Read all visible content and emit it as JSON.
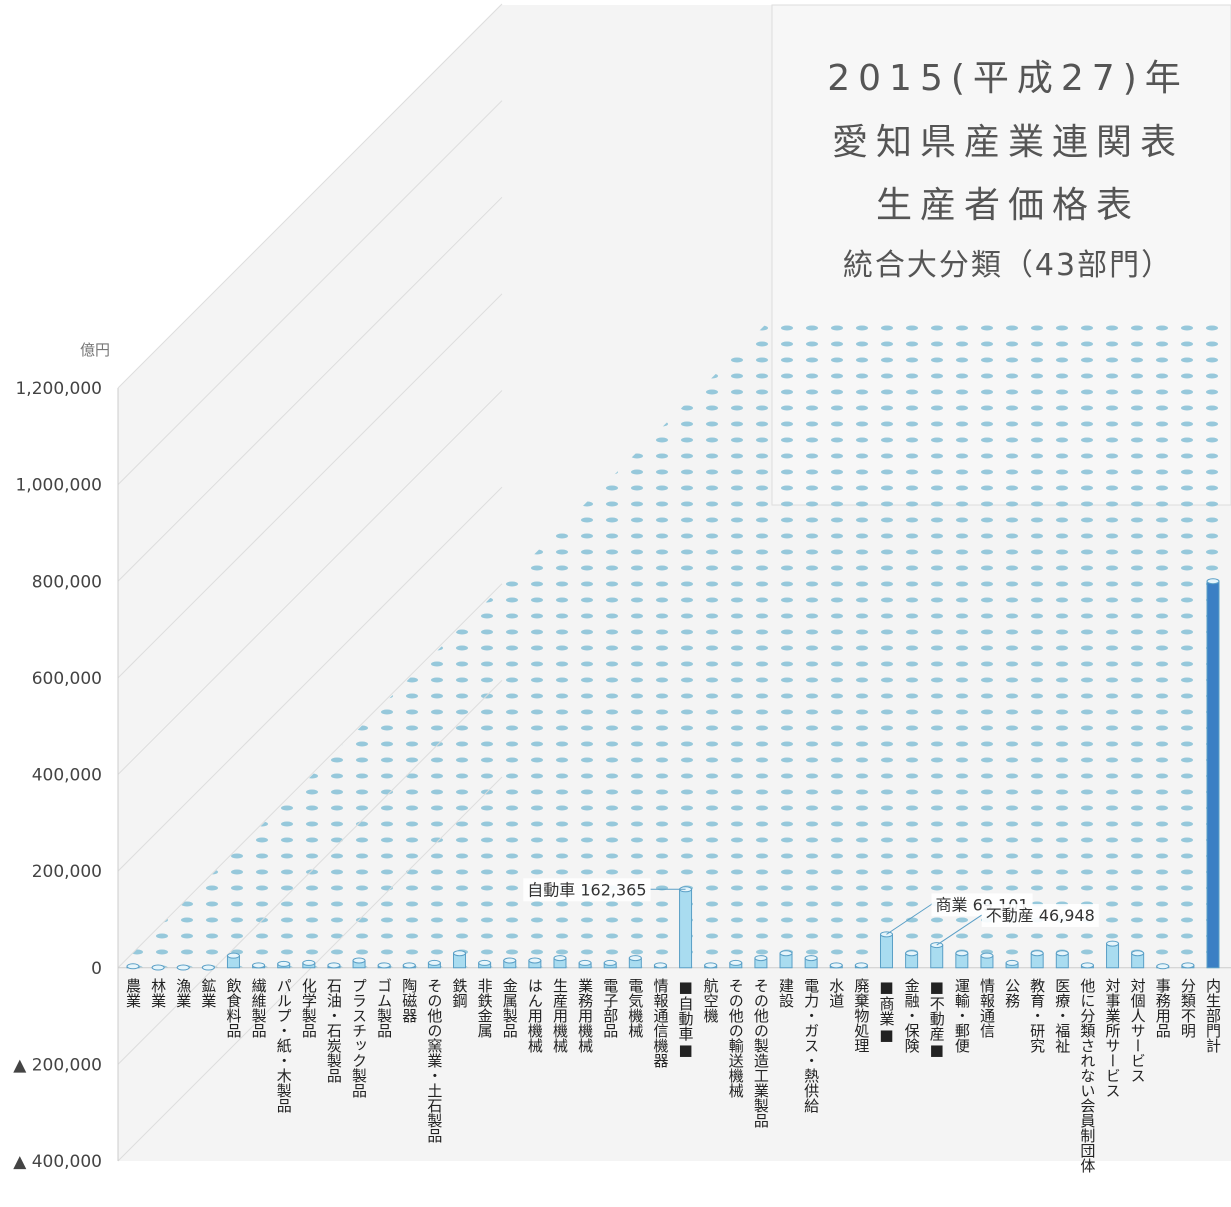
{
  "chart_data": {
    "type": "bar3d",
    "title_lines": [
      "2015(平成27)年",
      "愛知県産業連関表",
      "生産者価格表",
      "統合大分類（43部門）"
    ],
    "y_unit": "億円",
    "ylim": [
      -400000,
      1200000
    ],
    "yticks": [
      {
        "value": -400000,
        "label": "▲ 400,000"
      },
      {
        "value": -200000,
        "label": "▲ 200,000"
      },
      0,
      {
        "value": 200000,
        "label": "200,000"
      },
      {
        "value": 400000,
        "label": "400,000"
      },
      {
        "value": 600000,
        "label": "600,000"
      },
      {
        "value": 800000,
        "label": "800,000"
      },
      {
        "value": 1000000,
        "label": "1,000,000"
      },
      {
        "value": 1200000,
        "label": "1,200,000"
      }
    ],
    "categories": [
      "農業",
      "林業",
      "漁業",
      "鉱業",
      "飲食料品",
      "繊維製品",
      "パルプ・紙・木製品",
      "化学製品",
      "石油・石炭製品",
      "プラスチック製品",
      "ゴム製品",
      "陶磁器",
      "その他の窯業・土石製品",
      "鉄鋼",
      "非鉄金属",
      "金属製品",
      "はん用機械",
      "生産用機械",
      "業務用機械",
      "電子部品",
      "電気機械",
      "情報通信機器",
      "■自動車■",
      "航空機",
      "その他の輸送機械",
      "その他の製造工業製品",
      "建設",
      "電力・ガス・熱供給",
      "水道",
      "廃棄物処理",
      "■商業■",
      "金融・保険",
      "■不動産■",
      "運輸・郵便",
      "情報通信",
      "公務",
      "教育・研究",
      "医療・福祉",
      "他に分類されない会員制団体",
      "対事業所サービス",
      "対個人サービス",
      "事務用品",
      "分類不明",
      "内生部門計"
    ],
    "values": [
      3000,
      500,
      500,
      500,
      25000,
      5000,
      8000,
      10000,
      5000,
      15000,
      5000,
      5000,
      10000,
      30000,
      10000,
      15000,
      15000,
      20000,
      10000,
      10000,
      20000,
      5000,
      162365,
      5000,
      10000,
      20000,
      30000,
      20000,
      5000,
      5000,
      69101,
      30000,
      46948,
      30000,
      25000,
      10000,
      30000,
      30000,
      5000,
      50000,
      30000,
      3000,
      5000,
      800000
    ],
    "value_labels": [
      null,
      null,
      null,
      null,
      null,
      null,
      null,
      null,
      null,
      null,
      null,
      null,
      null,
      null,
      null,
      null,
      null,
      null,
      null,
      null,
      null,
      null,
      "自動車 162,365",
      null,
      null,
      null,
      null,
      null,
      null,
      null,
      "商業 69,101",
      null,
      "不動産 46,948",
      null,
      null,
      null,
      null,
      null,
      null,
      null,
      null,
      null,
      null,
      null
    ],
    "color": "#a9dcf0",
    "total_color": "#3b7fc4"
  }
}
